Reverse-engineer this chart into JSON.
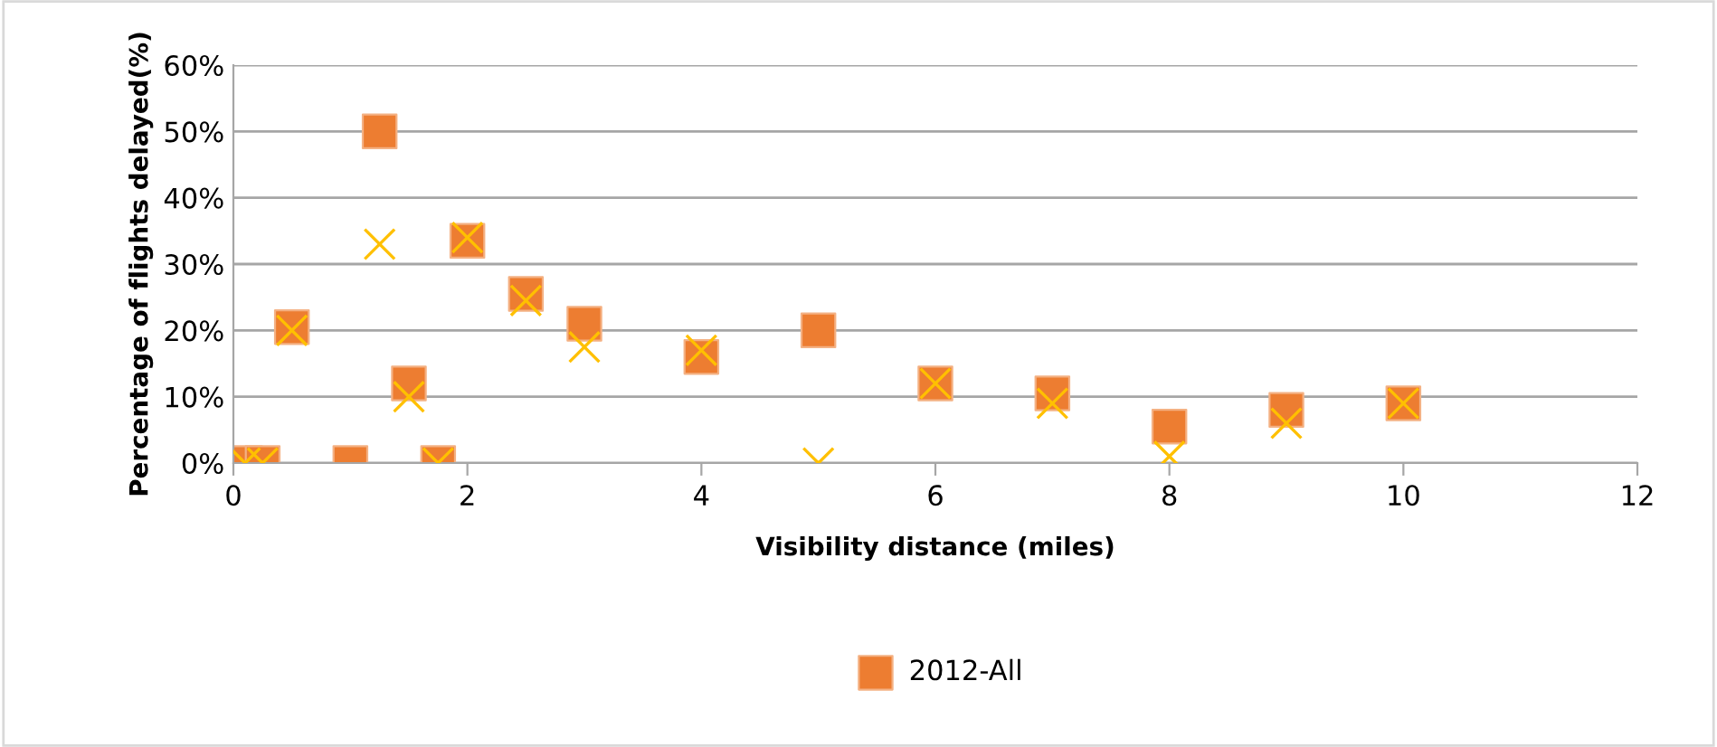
{
  "chart_data": {
    "type": "scatter",
    "xlabel": "Visibility distance (miles)",
    "ylabel": "Percentage of flights delayed(%)",
    "xlim": [
      0,
      12
    ],
    "xticks": [
      0,
      2,
      4,
      6,
      8,
      10,
      12
    ],
    "ylim": [
      0,
      60
    ],
    "yticks": [
      {
        "value": 0,
        "label": "0%"
      },
      {
        "value": 10,
        "label": "10%"
      },
      {
        "value": 20,
        "label": "20%"
      },
      {
        "value": 30,
        "label": "30%"
      },
      {
        "value": 40,
        "label": "40%"
      },
      {
        "value": 50,
        "label": "50%"
      },
      {
        "value": 60,
        "label": "60%"
      }
    ],
    "grid": "y",
    "legend": "bottom",
    "series": [
      {
        "name": "2012-All",
        "color": "#ed7d31",
        "marker": "square",
        "x": [
          0.1,
          0.25,
          0.5,
          1,
          1.25,
          1.5,
          1.75,
          2,
          2.5,
          3,
          4,
          5,
          6,
          7,
          8,
          9,
          10
        ],
        "values": [
          0,
          0,
          20.5,
          0,
          50,
          12,
          0,
          33.5,
          25.5,
          21,
          16,
          20,
          12,
          10.5,
          5.5,
          8,
          9
        ]
      },
      {
        "color": "#ffc000",
        "marker": "cross",
        "x": [
          0.1,
          0.25,
          0.5,
          1.25,
          1.5,
          1.75,
          2,
          2.5,
          3,
          4,
          5,
          6,
          7,
          8,
          9,
          10
        ],
        "values": [
          0,
          0,
          20,
          33,
          10,
          0,
          34,
          24.5,
          17.5,
          17,
          0,
          12,
          9,
          1,
          6,
          9
        ]
      }
    ]
  }
}
